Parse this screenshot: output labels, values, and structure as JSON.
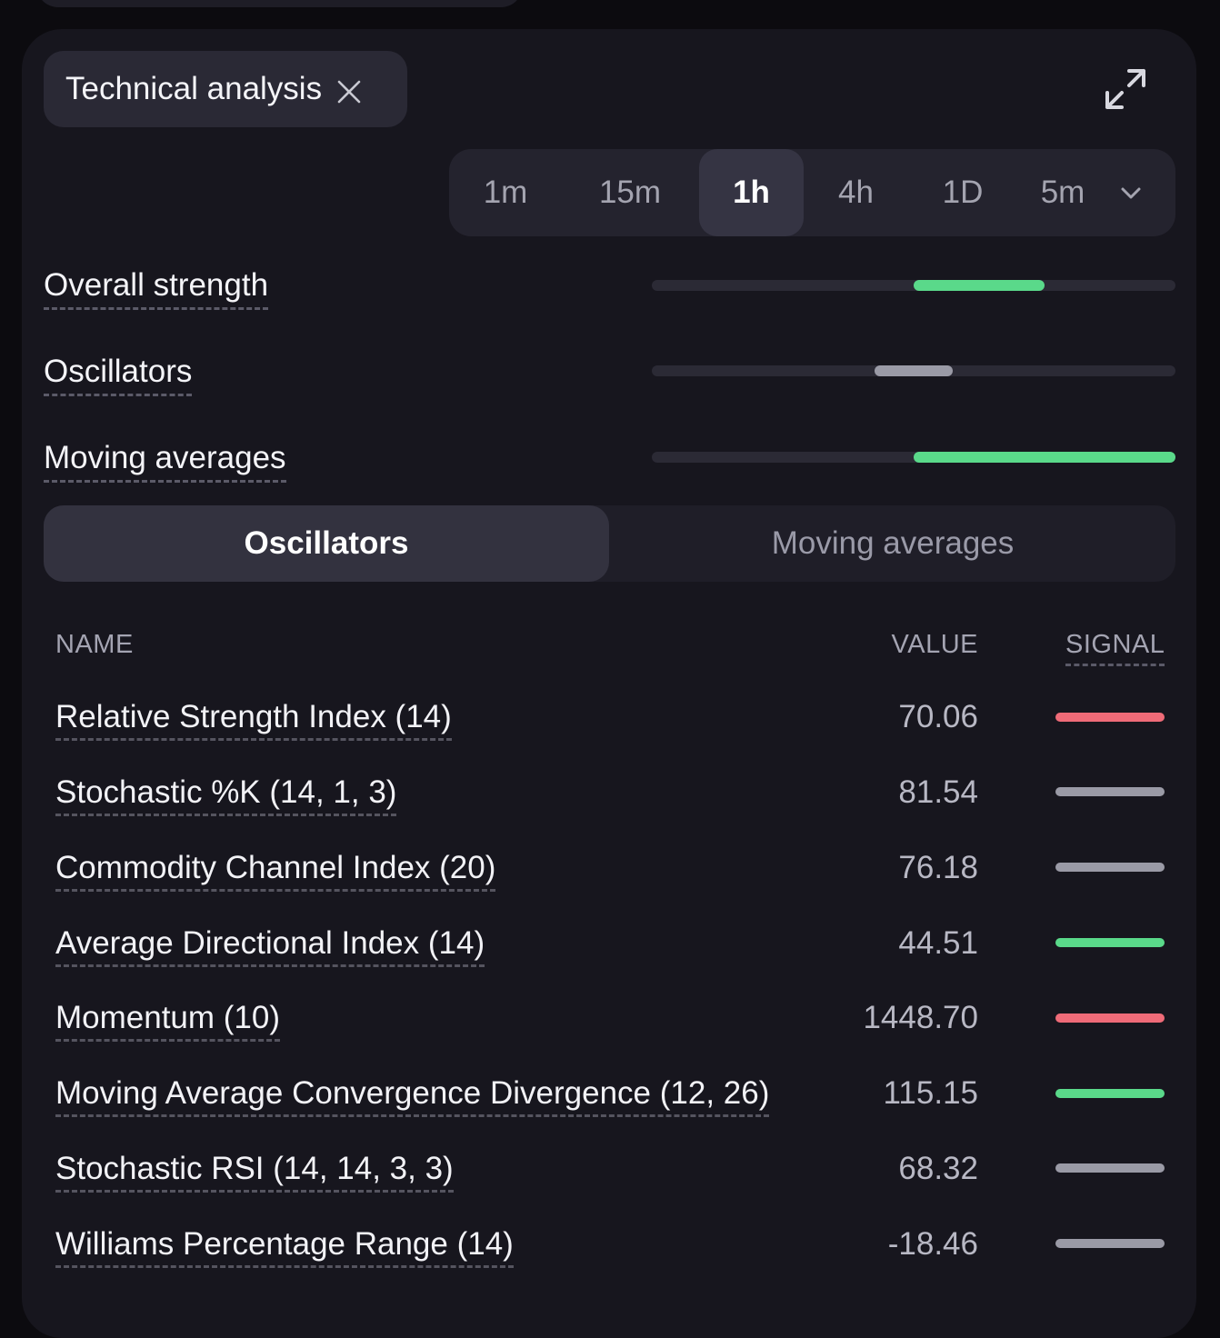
{
  "colors": {
    "buy": "#5ad98a",
    "sell": "#ef6b78",
    "neutral": "#9a9aa6"
  },
  "header": {
    "chip_label": "Technical analysis",
    "close_icon": "close-icon",
    "expand_icon": "expand-icon"
  },
  "timeframes": {
    "items": [
      "1m",
      "15m",
      "1h",
      "4h",
      "1D",
      "5m"
    ],
    "selected": "1h",
    "dropdown_icon": "chevron-down-icon"
  },
  "strength": [
    {
      "label": "Overall strength",
      "level_start": 0.5,
      "level_end": 0.75,
      "tone": "buy"
    },
    {
      "label": "Oscillators",
      "level_start": 0.425,
      "level_end": 0.575,
      "tone": "neutral"
    },
    {
      "label": "Moving averages",
      "level_start": 0.5,
      "level_end": 1.0,
      "tone": "buy"
    }
  ],
  "tabs": {
    "oscillators": "Oscillators",
    "moving_averages": "Moving averages",
    "selected": "Oscillators"
  },
  "table": {
    "headers": {
      "name": "NAME",
      "value": "VALUE",
      "signal": "SIGNAL"
    },
    "rows": [
      {
        "name": "Relative Strength Index (14)",
        "value": "70.06",
        "signal": "sell"
      },
      {
        "name": "Stochastic %K (14, 1, 3)",
        "value": "81.54",
        "signal": "neutral"
      },
      {
        "name": "Commodity Channel Index (20)",
        "value": "76.18",
        "signal": "neutral"
      },
      {
        "name": "Average Directional Index (14)",
        "value": "44.51",
        "signal": "buy"
      },
      {
        "name": "Momentum (10)",
        "value": "1448.70",
        "signal": "sell"
      },
      {
        "name": "Moving Average Convergence Divergence (12, 26)",
        "value": "115.15",
        "signal": "buy"
      },
      {
        "name": "Stochastic RSI (14, 14, 3, 3)",
        "value": "68.32",
        "signal": "neutral"
      },
      {
        "name": "Williams Percentage Range (14)",
        "value": "-18.46",
        "signal": "neutral"
      }
    ]
  }
}
